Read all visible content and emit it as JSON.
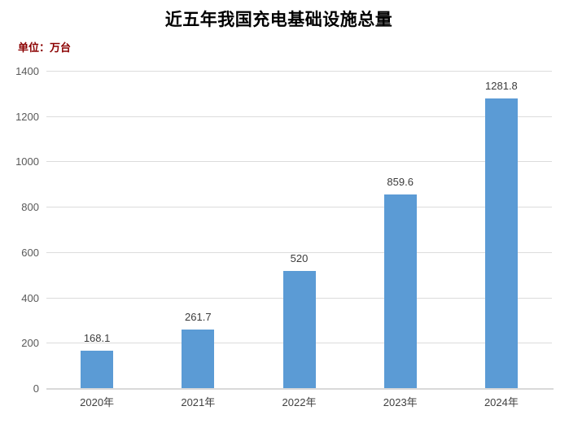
{
  "page": {
    "background": "#ffffff"
  },
  "chart": {
    "title": "近五年我国充电基础设施总量",
    "unit_label": "单位：万台",
    "colors": {
      "bar": "#5B9BD5",
      "gridline": "#DCDCDC",
      "axis_line": "#D9D9D9",
      "tick_text": "#595959",
      "value_label_text": "#3b3b3b",
      "category_text": "#404040",
      "title_text": "#000000",
      "unit_text": "#8B0000"
    }
  },
  "chart_data": {
    "type": "bar",
    "title": "近五年我国充电基础设施总量",
    "subtitle": "单位：万台",
    "categories": [
      "2020年",
      "2021年",
      "2022年",
      "2023年",
      "2024年"
    ],
    "values": [
      168.1,
      261.7,
      520,
      859.6,
      1281.8
    ],
    "value_labels": [
      "168.1",
      "261.7",
      "520",
      "859.6",
      "1281.8"
    ],
    "xlabel": "",
    "ylabel": "单位：万台",
    "ylim": [
      0,
      1400
    ],
    "yticks": [
      0,
      200,
      400,
      600,
      800,
      1000,
      1200,
      1400
    ],
    "grid": "horizontal",
    "legend": "none",
    "bar_color": "#5B9BD5"
  }
}
